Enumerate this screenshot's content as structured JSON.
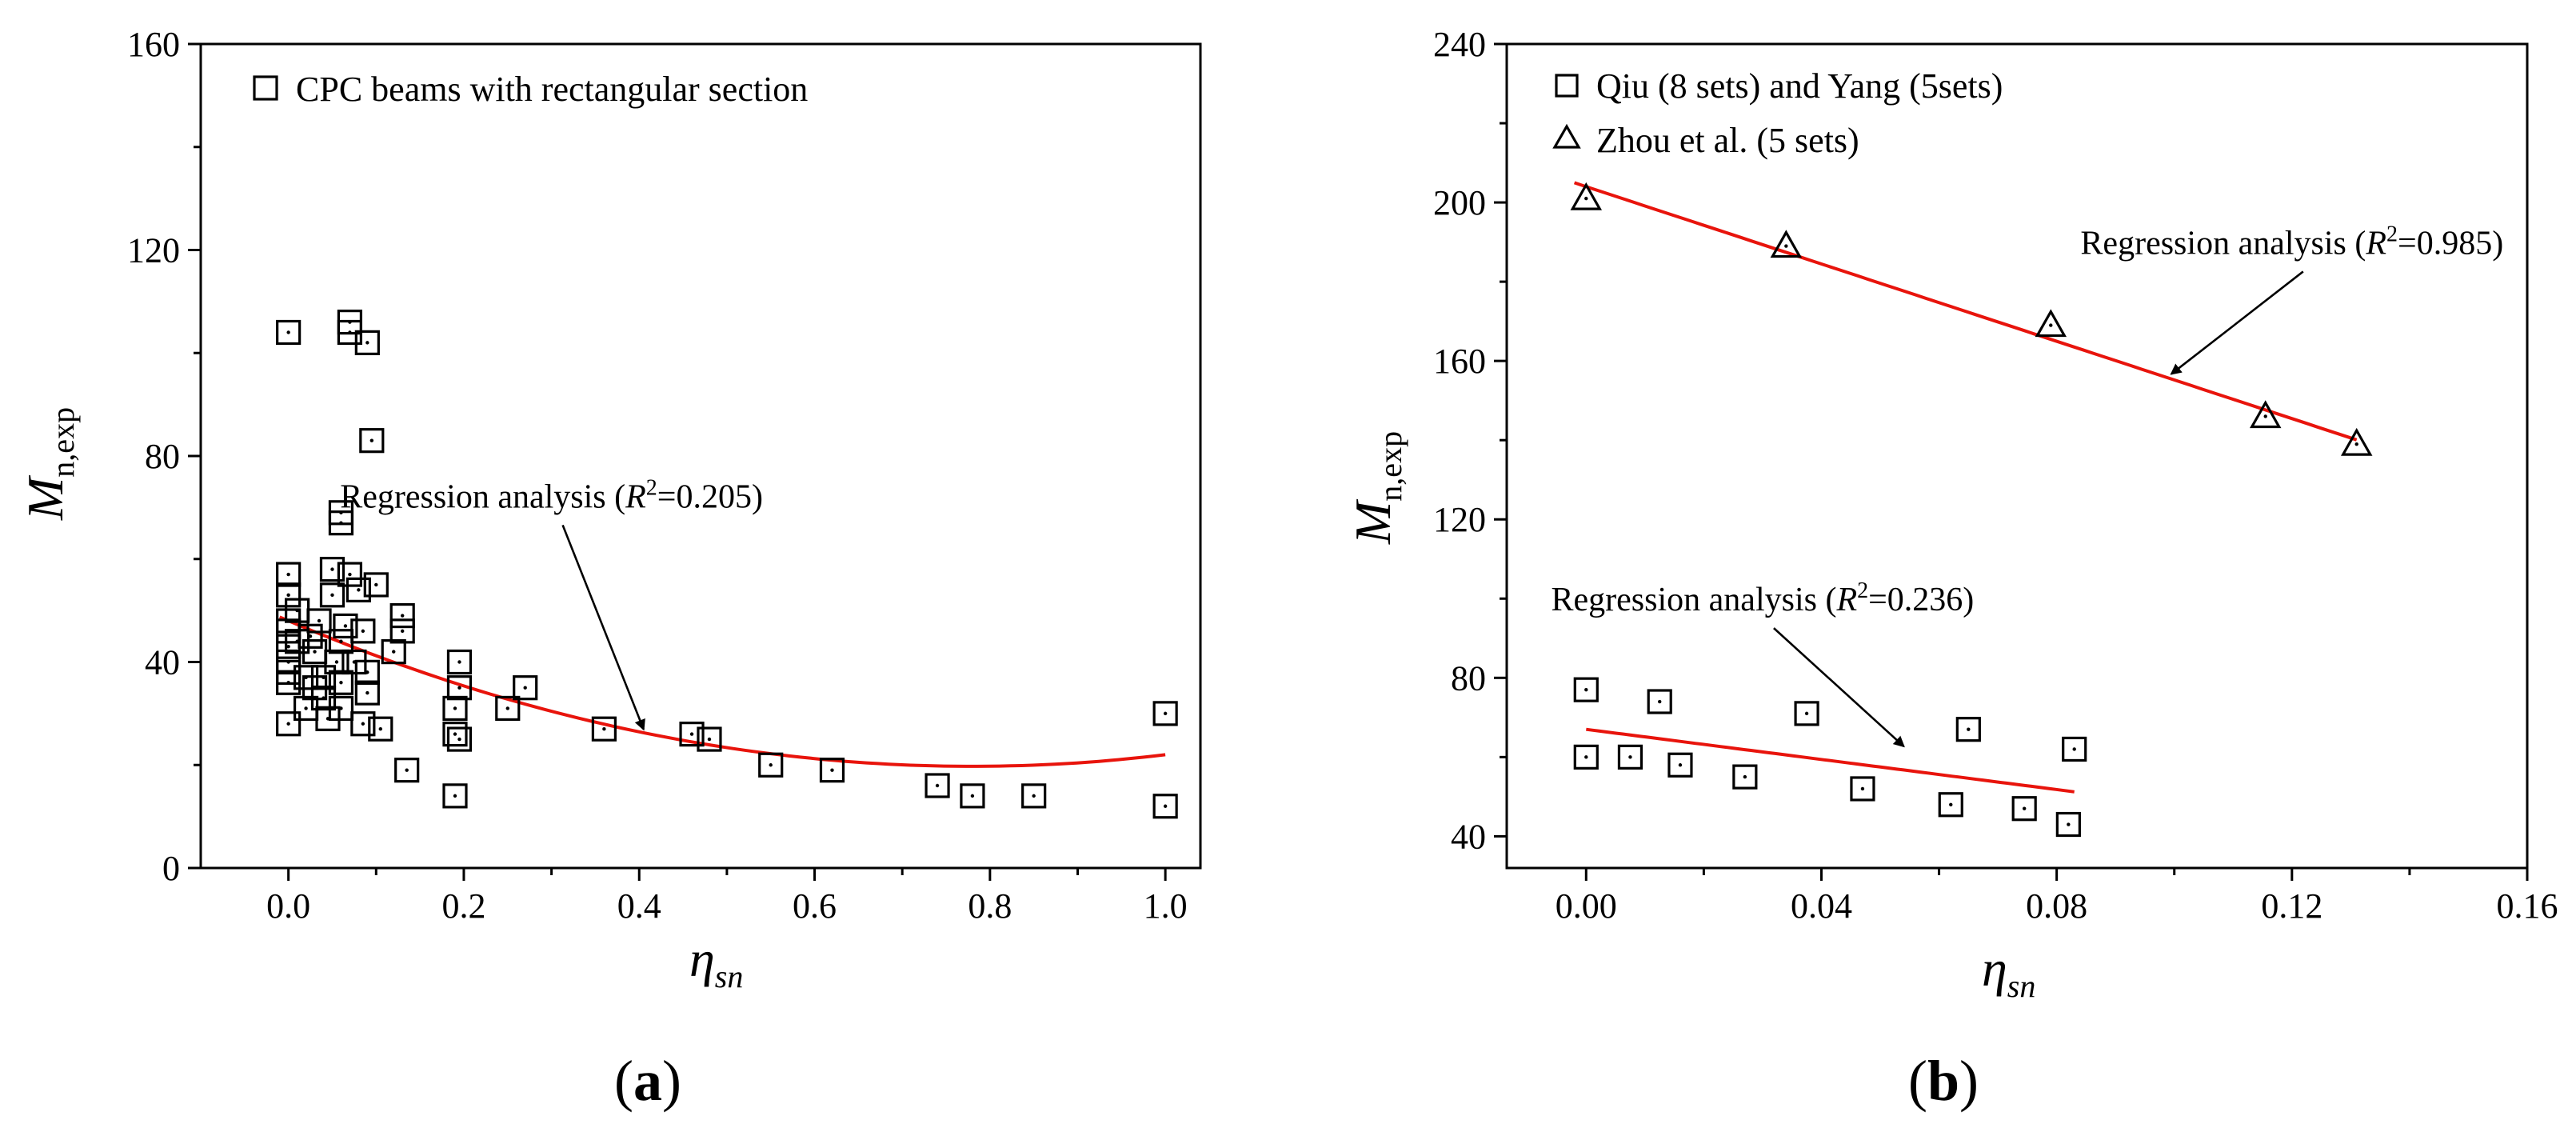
{
  "chart_data": [
    {
      "id": "a",
      "type": "scatter",
      "panel_label": "(a)",
      "xlabel": "η",
      "xlabel_sub": "sn",
      "ylabel": "M",
      "ylabel_sub": "n,exp",
      "xlim": [
        -0.1,
        1.04
      ],
      "ylim": [
        0,
        160
      ],
      "xticks": [
        "0.0",
        "0.2",
        "0.4",
        "0.6",
        "0.8",
        "1.0"
      ],
      "yticks": [
        "0",
        "40",
        "80",
        "120",
        "160"
      ],
      "series": [
        {
          "name": "CPC beams with rectangular section",
          "marker": "square",
          "points": [
            [
              0.0,
              104
            ],
            [
              0.0,
              57
            ],
            [
              0.0,
              53
            ],
            [
              0.0,
              48
            ],
            [
              0.0,
              46
            ],
            [
              0.0,
              43
            ],
            [
              0.0,
              40
            ],
            [
              0.0,
              38
            ],
            [
              0.0,
              36
            ],
            [
              0.0,
              28
            ],
            [
              0.01,
              50
            ],
            [
              0.01,
              44
            ],
            [
              0.02,
              37
            ],
            [
              0.02,
              31
            ],
            [
              0.025,
              45
            ],
            [
              0.03,
              42
            ],
            [
              0.03,
              35
            ],
            [
              0.035,
              48
            ],
            [
              0.04,
              33
            ],
            [
              0.04,
              37
            ],
            [
              0.045,
              29
            ],
            [
              0.05,
              58
            ],
            [
              0.05,
              53
            ],
            [
              0.055,
              40
            ],
            [
              0.06,
              69
            ],
            [
              0.06,
              67
            ],
            [
              0.06,
              44
            ],
            [
              0.06,
              36
            ],
            [
              0.06,
              31
            ],
            [
              0.065,
              47
            ],
            [
              0.07,
              106
            ],
            [
              0.07,
              104
            ],
            [
              0.07,
              57
            ],
            [
              0.075,
              40
            ],
            [
              0.08,
              54
            ],
            [
              0.085,
              46
            ],
            [
              0.085,
              28
            ],
            [
              0.09,
              102
            ],
            [
              0.09,
              34
            ],
            [
              0.09,
              38
            ],
            [
              0.095,
              83
            ],
            [
              0.1,
              55
            ],
            [
              0.105,
              27
            ],
            [
              0.12,
              42
            ],
            [
              0.13,
              49
            ],
            [
              0.13,
              46
            ],
            [
              0.135,
              19
            ],
            [
              0.19,
              31
            ],
            [
              0.19,
              26
            ],
            [
              0.19,
              14
            ],
            [
              0.195,
              40
            ],
            [
              0.195,
              35
            ],
            [
              0.195,
              25
            ],
            [
              0.25,
              31
            ],
            [
              0.27,
              35
            ],
            [
              0.36,
              27
            ],
            [
              0.46,
              26
            ],
            [
              0.48,
              25
            ],
            [
              0.55,
              20
            ],
            [
              0.62,
              19
            ],
            [
              0.74,
              16
            ],
            [
              0.78,
              14
            ],
            [
              0.85,
              14
            ],
            [
              1.0,
              30
            ],
            [
              1.0,
              12
            ]
          ]
        }
      ],
      "fits": [
        {
          "name": "Regression analysis",
          "r2": "0.205",
          "model": "quadratic",
          "coef": [
            48.0,
            -72.5,
            46.5
          ],
          "x_range": [
            -0.01,
            1.0
          ]
        }
      ],
      "annotations": [
        {
          "text_prefix": "Regression analysis (",
          "text_r": "R",
          "text_sup": "2",
          "text_value": "=0.205)",
          "anchor": [
            0.405,
            26.0
          ],
          "text_at": [
            0.3,
            70
          ]
        }
      ]
    },
    {
      "id": "b",
      "type": "scatter",
      "panel_label": "(b)",
      "xlabel": "η",
      "xlabel_sub": "sn",
      "ylabel": "M",
      "ylabel_sub": "n,exp",
      "xlim": [
        -0.0135,
        0.16
      ],
      "ylim": [
        32,
        240
      ],
      "xticks": [
        "0.00",
        "0.04",
        "0.08",
        "0.12",
        "0.16"
      ],
      "yticks": [
        "40",
        "80",
        "120",
        "160",
        "200",
        "240"
      ],
      "series": [
        {
          "name": "Qiu (8 sets) and Yang (5sets)",
          "marker": "square",
          "points": [
            [
              0.0,
              77
            ],
            [
              0.0,
              60
            ],
            [
              0.0075,
              60
            ],
            [
              0.0125,
              74
            ],
            [
              0.016,
              58
            ],
            [
              0.027,
              55
            ],
            [
              0.0375,
              71
            ],
            [
              0.047,
              52
            ],
            [
              0.062,
              48
            ],
            [
              0.065,
              67
            ],
            [
              0.0745,
              47
            ],
            [
              0.082,
              43
            ],
            [
              0.083,
              62
            ]
          ]
        },
        {
          "name": "Zhou et al. (5 sets)",
          "marker": "triangle",
          "points": [
            [
              0.0,
              201
            ],
            [
              0.034,
              189
            ],
            [
              0.079,
              169
            ],
            [
              0.1155,
              146
            ],
            [
              0.131,
              139
            ]
          ]
        }
      ],
      "fits": [
        {
          "name": "Regression analysis",
          "r2": "0.236",
          "model": "linear",
          "coef": [
            67.0,
            -190.0
          ],
          "x_range": [
            0.0,
            0.083
          ]
        },
        {
          "name": "Regression analysis",
          "r2": "0.985",
          "model": "linear",
          "coef": [
            204.0,
            -488.0
          ],
          "x_range": [
            -0.002,
            0.131
          ]
        }
      ],
      "annotations": [
        {
          "text_prefix": "Regression analysis (",
          "text_r": "R",
          "text_sup": "2",
          "text_value": "=0.236)",
          "anchor": [
            0.054,
            61.5
          ],
          "text_at": [
            0.03,
            97
          ]
        },
        {
          "text_prefix": "Regression analysis (",
          "text_r": "R",
          "text_sup": "2",
          "text_value": "=0.985)",
          "anchor": [
            0.0995,
            155.5
          ],
          "text_at": [
            0.12,
            187
          ]
        }
      ]
    }
  ]
}
